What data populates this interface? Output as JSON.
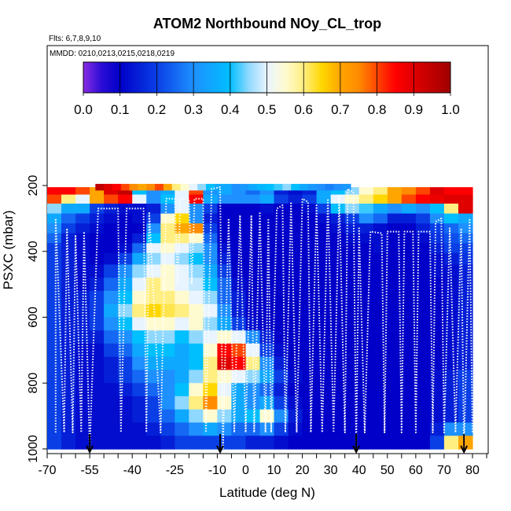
{
  "chart_data": {
    "type": "heatmap",
    "title": "ATOM2 Northbound NOy_CL_trop",
    "flights_label": "Flts: 6,7,8,9,10",
    "dates_label": "MMDD: 0210,0213,0215,0218,0219",
    "xlabel": "Latitude (deg N)",
    "ylabel": "PSXC (mbar)",
    "xlim": [
      -70,
      85
    ],
    "ylim": [
      1000,
      130
    ],
    "x_ticks": [
      -70,
      -55,
      -40,
      -25,
      -10,
      0,
      10,
      20,
      30,
      40,
      50,
      60,
      70,
      80
    ],
    "x_minor_step": 5,
    "y_ticks": [
      200,
      400,
      600,
      800,
      1000
    ],
    "colorbar": {
      "min": 0.0,
      "max": 1.0,
      "ticks": [
        "0.0",
        "0.1",
        "0.2",
        "0.3",
        "0.4",
        "0.5",
        "0.6",
        "0.7",
        "0.8",
        "0.9",
        "1.0"
      ],
      "stops": [
        {
          "v": 0.0,
          "c": "#8a2be2"
        },
        {
          "v": 0.05,
          "c": "#2a0dd6"
        },
        {
          "v": 0.1,
          "c": "#0000c8"
        },
        {
          "v": 0.2,
          "c": "#0a3fe6"
        },
        {
          "v": 0.3,
          "c": "#1e90ff"
        },
        {
          "v": 0.4,
          "c": "#00bfff"
        },
        {
          "v": 0.45,
          "c": "#8fd8ff"
        },
        {
          "v": 0.5,
          "c": "#e8f4ff"
        },
        {
          "v": 0.55,
          "c": "#fffbd0"
        },
        {
          "v": 0.6,
          "c": "#ffee80"
        },
        {
          "v": 0.65,
          "c": "#ffd700"
        },
        {
          "v": 0.7,
          "c": "#ffa500"
        },
        {
          "v": 0.75,
          "c": "#ff8c00"
        },
        {
          "v": 0.8,
          "c": "#ff4500"
        },
        {
          "v": 0.85,
          "c": "#ff0000"
        },
        {
          "v": 0.9,
          "c": "#e00000"
        },
        {
          "v": 1.0,
          "c": "#a00000"
        }
      ]
    },
    "pressure_levels": [
      215,
      240,
      270,
      300,
      330,
      360,
      390,
      420,
      460,
      500,
      540,
      580,
      620,
      660,
      700,
      740,
      780,
      820,
      860,
      900,
      940,
      980
    ],
    "latitudes": [
      -67.5,
      -62.5,
      -57.5,
      -52.5,
      -47.5,
      -42.5,
      -37.5,
      -32.5,
      -27.5,
      -22.5,
      -17.5,
      -12.5,
      -7.5,
      -2.5,
      2.5,
      7.5,
      12.5,
      17.5,
      22.5,
      27.5,
      32.5,
      37.5,
      42.5,
      47.5,
      52.5,
      57.5,
      62.5,
      67.5,
      72.5,
      77.5
    ],
    "values": [
      [
        0.85,
        0.85,
        0.8,
        0.7,
        0.9,
        0.95,
        0.4,
        0.3,
        0.35,
        0.5,
        0.8,
        0.3,
        0.35,
        0.3,
        0.25,
        0.3,
        0.15,
        0.12,
        0.15,
        0.35,
        0.4,
        0.45,
        0.55,
        0.6,
        0.7,
        0.75,
        0.8,
        0.9,
        0.85,
        0.85
      ],
      [
        0.8,
        0.6,
        0.5,
        0.7,
        0.8,
        0.85,
        0.5,
        0.3,
        0.4,
        0.5,
        0.85,
        0.35,
        0.3,
        0.3,
        0.3,
        0.35,
        0.2,
        0.15,
        0.2,
        0.35,
        0.5,
        0.55,
        0.6,
        0.65,
        0.7,
        0.8,
        0.85,
        0.88,
        0.9,
        0.9
      ],
      [
        0.45,
        0.35,
        0.35,
        0.2,
        0.15,
        0.12,
        0.12,
        0.15,
        0.3,
        0.5,
        0.3,
        0.2,
        0.1,
        0.1,
        0.1,
        0.12,
        0.1,
        0.1,
        0.12,
        0.2,
        0.4,
        0.45,
        0.42,
        0.35,
        0.3,
        0.35,
        0.3,
        0.4,
        0.6,
        0.9
      ],
      [
        0.35,
        0.25,
        0.2,
        0.15,
        0.12,
        0.1,
        0.12,
        0.2,
        0.55,
        0.65,
        0.3,
        0.15,
        0.1,
        0.1,
        0.1,
        0.1,
        0.1,
        0.1,
        0.1,
        0.12,
        0.15,
        0.2,
        0.3,
        0.25,
        0.15,
        0.15,
        0.2,
        0.3,
        0.4,
        0.35
      ],
      [
        0.3,
        0.2,
        0.15,
        0.12,
        0.1,
        0.1,
        0.1,
        0.3,
        0.6,
        0.7,
        0.75,
        0.2,
        0.1,
        0.1,
        0.1,
        0.1,
        0.1,
        0.1,
        0.1,
        0.1,
        0.12,
        0.15,
        0.15,
        0.12,
        0.1,
        0.1,
        0.15,
        0.2,
        0.25,
        0.3
      ],
      [
        0.25,
        0.15,
        0.12,
        0.1,
        0.1,
        0.1,
        0.15,
        0.4,
        0.6,
        0.6,
        0.55,
        0.25,
        0.1,
        0.1,
        0.1,
        0.1,
        0.1,
        0.1,
        0.1,
        0.1,
        0.1,
        0.12,
        0.12,
        0.12,
        0.1,
        0.1,
        0.12,
        0.18,
        0.22,
        0.25
      ],
      [
        0.2,
        0.15,
        0.12,
        0.1,
        0.1,
        0.12,
        0.25,
        0.5,
        0.55,
        0.5,
        0.45,
        0.3,
        0.12,
        0.1,
        0.1,
        0.1,
        0.1,
        0.1,
        0.1,
        0.1,
        0.1,
        0.1,
        0.1,
        0.12,
        0.1,
        0.1,
        0.1,
        0.15,
        0.2,
        0.2
      ],
      [
        0.2,
        0.15,
        0.12,
        0.1,
        0.12,
        0.2,
        0.35,
        0.45,
        0.5,
        0.45,
        0.4,
        0.3,
        0.15,
        0.1,
        0.1,
        0.1,
        0.1,
        0.1,
        0.1,
        0.1,
        0.1,
        0.1,
        0.1,
        0.1,
        0.1,
        0.1,
        0.1,
        0.12,
        0.15,
        0.18
      ],
      [
        0.2,
        0.15,
        0.12,
        0.12,
        0.2,
        0.3,
        0.45,
        0.5,
        0.55,
        0.5,
        0.45,
        0.35,
        0.2,
        0.1,
        0.1,
        0.1,
        0.1,
        0.1,
        0.1,
        0.1,
        0.1,
        0.1,
        0.1,
        0.1,
        0.1,
        0.1,
        0.1,
        0.12,
        0.12,
        0.15
      ],
      [
        0.2,
        0.15,
        0.12,
        0.15,
        0.25,
        0.35,
        0.5,
        0.6,
        0.55,
        0.5,
        0.48,
        0.4,
        0.25,
        0.12,
        0.1,
        0.1,
        0.1,
        0.1,
        0.1,
        0.1,
        0.1,
        0.1,
        0.1,
        0.1,
        0.1,
        0.1,
        0.1,
        0.1,
        0.12,
        0.15
      ],
      [
        0.2,
        0.15,
        0.15,
        0.2,
        0.3,
        0.4,
        0.55,
        0.6,
        0.6,
        0.55,
        0.5,
        0.45,
        0.25,
        0.15,
        0.1,
        0.1,
        0.1,
        0.1,
        0.1,
        0.1,
        0.1,
        0.1,
        0.1,
        0.1,
        0.1,
        0.1,
        0.1,
        0.1,
        0.12,
        0.15
      ],
      [
        0.2,
        0.15,
        0.15,
        0.2,
        0.35,
        0.45,
        0.6,
        0.65,
        0.62,
        0.6,
        0.55,
        0.5,
        0.3,
        0.15,
        0.1,
        0.1,
        0.1,
        0.1,
        0.1,
        0.1,
        0.1,
        0.1,
        0.1,
        0.1,
        0.1,
        0.1,
        0.1,
        0.1,
        0.12,
        0.15
      ],
      [
        0.2,
        0.15,
        0.15,
        0.2,
        0.3,
        0.4,
        0.5,
        0.55,
        0.55,
        0.5,
        0.55,
        0.45,
        0.35,
        0.2,
        0.12,
        0.1,
        0.1,
        0.1,
        0.1,
        0.1,
        0.1,
        0.1,
        0.1,
        0.1,
        0.1,
        0.1,
        0.1,
        0.1,
        0.12,
        0.15
      ],
      [
        0.2,
        0.15,
        0.15,
        0.15,
        0.25,
        0.3,
        0.4,
        0.45,
        0.45,
        0.4,
        0.45,
        0.5,
        0.55,
        0.5,
        0.3,
        0.15,
        0.1,
        0.1,
        0.1,
        0.1,
        0.1,
        0.1,
        0.1,
        0.1,
        0.1,
        0.1,
        0.1,
        0.1,
        0.12,
        0.15
      ],
      [
        0.2,
        0.15,
        0.12,
        0.12,
        0.2,
        0.25,
        0.35,
        0.4,
        0.4,
        0.35,
        0.4,
        0.55,
        0.85,
        0.8,
        0.5,
        0.2,
        0.12,
        0.1,
        0.1,
        0.1,
        0.1,
        0.1,
        0.1,
        0.1,
        0.1,
        0.1,
        0.1,
        0.1,
        0.12,
        0.15
      ],
      [
        0.2,
        0.15,
        0.12,
        0.12,
        0.15,
        0.2,
        0.3,
        0.35,
        0.35,
        0.35,
        0.4,
        0.6,
        0.9,
        0.85,
        0.6,
        0.3,
        0.15,
        0.1,
        0.1,
        0.1,
        0.1,
        0.1,
        0.1,
        0.1,
        0.1,
        0.1,
        0.1,
        0.1,
        0.12,
        0.15
      ],
      [
        0.2,
        0.15,
        0.12,
        0.12,
        0.15,
        0.2,
        0.25,
        0.3,
        0.3,
        0.35,
        0.45,
        0.6,
        0.55,
        0.5,
        0.45,
        0.35,
        0.2,
        0.12,
        0.1,
        0.1,
        0.1,
        0.1,
        0.1,
        0.1,
        0.1,
        0.1,
        0.1,
        0.12,
        0.15,
        0.2
      ],
      [
        0.2,
        0.15,
        0.12,
        0.12,
        0.12,
        0.15,
        0.2,
        0.25,
        0.3,
        0.4,
        0.55,
        0.65,
        0.5,
        0.35,
        0.3,
        0.25,
        0.15,
        0.1,
        0.1,
        0.1,
        0.1,
        0.1,
        0.1,
        0.1,
        0.1,
        0.1,
        0.1,
        0.12,
        0.15,
        0.2
      ],
      [
        0.2,
        0.15,
        0.12,
        0.12,
        0.12,
        0.12,
        0.15,
        0.2,
        0.3,
        0.45,
        0.6,
        0.75,
        0.55,
        0.35,
        0.3,
        0.35,
        0.2,
        0.12,
        0.1,
        0.1,
        0.1,
        0.1,
        0.1,
        0.1,
        0.1,
        0.1,
        0.1,
        0.12,
        0.15,
        0.2
      ],
      [
        0.2,
        0.15,
        0.12,
        0.12,
        0.12,
        0.12,
        0.15,
        0.2,
        0.25,
        0.35,
        0.45,
        0.55,
        0.45,
        0.35,
        0.4,
        0.55,
        0.3,
        0.15,
        0.1,
        0.1,
        0.1,
        0.1,
        0.1,
        0.1,
        0.1,
        0.1,
        0.1,
        0.12,
        0.15,
        0.2
      ],
      [
        0.2,
        0.15,
        0.12,
        0.12,
        0.12,
        0.12,
        0.12,
        0.15,
        0.2,
        0.25,
        0.3,
        0.35,
        0.3,
        0.25,
        0.25,
        0.3,
        0.2,
        0.12,
        0.1,
        0.1,
        0.1,
        0.1,
        0.1,
        0.1,
        0.1,
        0.1,
        0.1,
        0.15,
        0.3,
        0.3
      ],
      [
        0.2,
        0.15,
        0.12,
        0.12,
        0.12,
        0.12,
        0.12,
        0.12,
        0.15,
        0.2,
        0.2,
        0.2,
        0.2,
        0.2,
        0.15,
        0.15,
        0.12,
        0.1,
        0.1,
        0.1,
        0.1,
        0.1,
        0.1,
        0.1,
        0.1,
        0.1,
        0.1,
        0.2,
        0.6,
        0.7
      ]
    ],
    "top_strip": {
      "lat_from": -53,
      "lat_to": 37,
      "pressure_from": 195,
      "pressure_to": 215,
      "values": [
        0.95,
        0.9,
        0.85,
        0.8,
        0.75,
        0.7,
        0.75,
        0.8,
        0.7,
        0.6,
        0.55,
        0.5,
        0.45,
        0.4,
        0.35,
        0.35,
        0.3,
        0.32,
        0.35,
        0.38,
        0.4,
        0.42,
        0.45,
        0.4,
        0.35,
        0.32,
        0.3,
        0.28,
        0.3,
        0.32
      ]
    },
    "flight_tracks": [
      {
        "name": "profile-a",
        "points": [
          [
            -67,
            950
          ],
          [
            -67,
            300
          ],
          [
            -64,
            950
          ],
          [
            -63,
            330
          ],
          [
            -61,
            950
          ],
          [
            -60,
            350
          ],
          [
            -58,
            950
          ],
          [
            -57,
            340
          ],
          [
            -55,
            1000
          ],
          [
            -52,
            270
          ],
          [
            -45,
            270
          ],
          [
            -44,
            950
          ],
          [
            -42,
            270
          ],
          [
            -36,
            270
          ],
          [
            -35,
            950
          ],
          [
            -34,
            280
          ],
          [
            -30,
            950
          ],
          [
            -28,
            240
          ],
          [
            -25,
            240
          ],
          [
            -24,
            500
          ],
          [
            -23,
            240
          ],
          [
            -20,
            240
          ],
          [
            -19,
            500
          ],
          [
            -18,
            240
          ],
          [
            -15,
            240
          ],
          [
            -14,
            950
          ],
          [
            -12,
            210
          ],
          [
            -9,
            205
          ],
          [
            -8,
            1000
          ]
        ]
      },
      {
        "name": "profile-b",
        "points": [
          [
            -8,
            1000
          ],
          [
            -6,
            300
          ],
          [
            -4,
            950
          ],
          [
            -2,
            290
          ],
          [
            0,
            950
          ],
          [
            2,
            290
          ],
          [
            3,
            950
          ],
          [
            5,
            280
          ],
          [
            7,
            950
          ],
          [
            8,
            300
          ],
          [
            9,
            950
          ],
          [
            11,
            270
          ],
          [
            13,
            260
          ],
          [
            14,
            950
          ],
          [
            16,
            250
          ],
          [
            18,
            950
          ],
          [
            20,
            240
          ],
          [
            22,
            250
          ],
          [
            23,
            950
          ],
          [
            25,
            260
          ],
          [
            27,
            950
          ],
          [
            29,
            240
          ],
          [
            31,
            950
          ],
          [
            33,
            230
          ],
          [
            35,
            950
          ],
          [
            36,
            210
          ],
          [
            38,
            220
          ],
          [
            39,
            1000
          ]
        ]
      },
      {
        "name": "profile-c",
        "points": [
          [
            39,
            1000
          ],
          [
            40,
            330
          ],
          [
            42,
            950
          ],
          [
            44,
            340
          ],
          [
            48,
            345
          ],
          [
            49,
            950
          ],
          [
            50,
            340
          ],
          [
            54,
            340
          ],
          [
            55,
            950
          ],
          [
            56,
            340
          ],
          [
            59,
            340
          ],
          [
            60,
            950
          ],
          [
            61,
            340
          ],
          [
            65,
            340
          ],
          [
            66,
            950
          ],
          [
            67,
            310
          ],
          [
            69,
            300
          ],
          [
            70,
            950
          ],
          [
            72,
            330
          ],
          [
            74,
            950
          ],
          [
            76,
            330
          ],
          [
            77,
            1000
          ],
          [
            79,
            300
          ],
          [
            80,
            950
          ]
        ]
      }
    ],
    "arrow_latitudes": [
      -55,
      -9,
      39,
      77
    ]
  }
}
